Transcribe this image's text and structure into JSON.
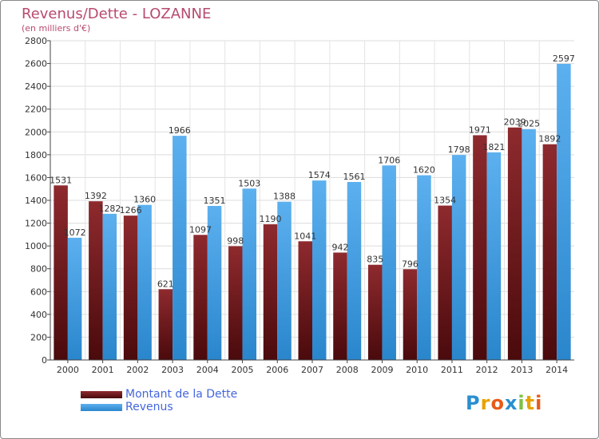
{
  "header": {
    "title": "Revenus/Dette - LOZANNE",
    "subtitle": "(en milliers d'€)"
  },
  "chart_data": {
    "type": "bar",
    "categories": [
      "2000",
      "2001",
      "2002",
      "2003",
      "2004",
      "2005",
      "2006",
      "2007",
      "2008",
      "2009",
      "2010",
      "2011",
      "2012",
      "2013",
      "2014"
    ],
    "series": [
      {
        "name": "Montant de la Dette",
        "color": "#7a1a1e",
        "values": [
          1531,
          1392,
          1266,
          621,
          1097,
          998,
          1190,
          1041,
          942,
          835,
          796,
          1354,
          1971,
          2039,
          1892
        ],
        "labels": [
          "1531",
          "1392",
          "1266",
          "621",
          "1097",
          "998",
          "1190",
          "1041",
          "942",
          "835",
          "796",
          "1354",
          "1971",
          "2039",
          "1892"
        ]
      },
      {
        "name": "Revenus",
        "color": "#3b9ae0",
        "values": [
          1072,
          1282,
          1360,
          1966,
          1351,
          1503,
          1388,
          1574,
          1561,
          1706,
          1620,
          1798,
          1821,
          2025,
          2597
        ],
        "labels": [
          "1072",
          "1282",
          "1360",
          "1966",
          "1351",
          "1503",
          "1388",
          "1574",
          "1561",
          "1706",
          "1620",
          "1798",
          "1821",
          "2025",
          "2597"
        ]
      }
    ],
    "yticks": [
      0,
      200,
      400,
      600,
      800,
      1000,
      1200,
      1400,
      1600,
      1800,
      2000,
      2200,
      2400,
      2600,
      2800
    ],
    "ylim": [
      0,
      2800
    ],
    "grid": true,
    "legend": "bottom-left"
  },
  "legend": {
    "items": [
      {
        "label": "Montant de la Dette",
        "color": "#7a1a1e"
      },
      {
        "label": "Revenus",
        "color": "#3b9ae0"
      }
    ]
  },
  "logo": {
    "letters": [
      "P",
      "r",
      "o",
      "x",
      "i",
      "t",
      "i"
    ],
    "colors": [
      "#2a8fd0",
      "#e8a200",
      "#e85a1a",
      "#2a8fd0",
      "#7cc142",
      "#e8a200",
      "#e85a1a"
    ]
  }
}
